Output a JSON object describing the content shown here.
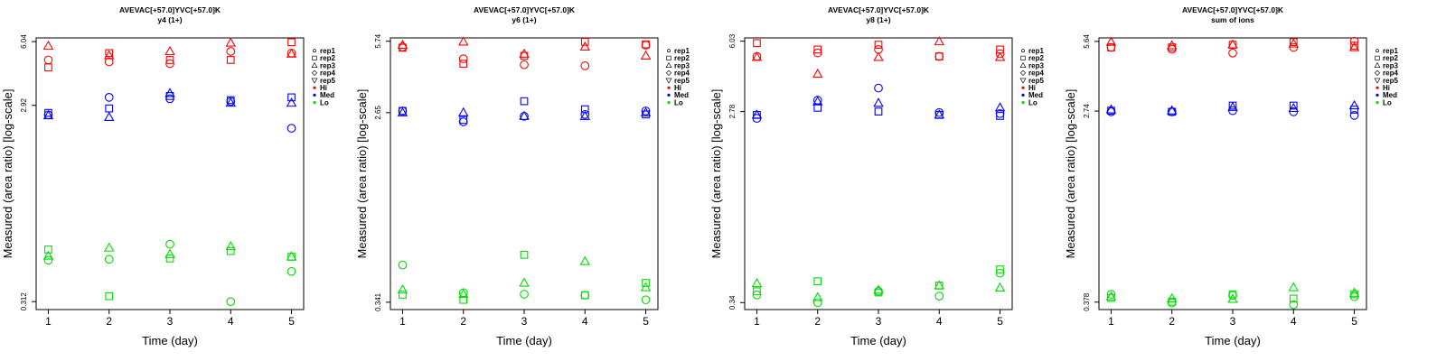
{
  "chart_data": [
    {
      "type": "scatter",
      "title": "AVEVAC[+57.0]YVC[+57.0]K",
      "subtitle": "y4 (1+)",
      "xlabel": "Time (day)",
      "ylabel": "Measured (area ratio) [log-scale]",
      "x_ticks": [
        1,
        2,
        3,
        4,
        5
      ],
      "xlim": [
        0.8,
        5.2
      ],
      "y_scale": "log",
      "y_ticks": [
        "0.312",
        "2.92",
        "6.04"
      ],
      "y_tick_values": [
        0.312,
        2.92,
        6.04
      ],
      "ylim": [
        0.285,
        6.3
      ],
      "legend": {
        "position": "right",
        "replicates": [
          "rep1",
          "rep2",
          "rep3",
          "rep4",
          "rep5"
        ],
        "levels": [
          "Hi",
          "Med",
          "Lo"
        ]
      },
      "series": [
        {
          "level": "Hi",
          "rep": "rep1",
          "x": [
            1,
            2,
            3,
            4,
            5
          ],
          "values": [
            4.9,
            4.8,
            4.7,
            5.4,
            5.3
          ]
        },
        {
          "level": "Hi",
          "rep": "rep2",
          "x": [
            1,
            2,
            3,
            4,
            5
          ],
          "values": [
            4.5,
            5.3,
            4.9,
            4.9,
            6.0
          ]
        },
        {
          "level": "Hi",
          "rep": "rep3",
          "x": [
            1,
            2,
            3,
            4,
            5
          ],
          "values": [
            5.75,
            5.15,
            5.4,
            5.95,
            5.25
          ]
        },
        {
          "level": "Med",
          "rep": "rep1",
          "x": [
            1,
            2,
            3,
            4,
            5
          ],
          "values": [
            2.62,
            3.2,
            3.15,
            3.05,
            2.25
          ]
        },
        {
          "level": "Med",
          "rep": "rep2",
          "x": [
            1,
            2,
            3,
            4,
            5
          ],
          "values": [
            2.68,
            2.82,
            3.25,
            3.1,
            3.2
          ]
        },
        {
          "level": "Med",
          "rep": "rep3",
          "x": [
            1,
            2,
            3,
            4,
            5
          ],
          "values": [
            2.6,
            2.55,
            3.35,
            3.0,
            3.0
          ]
        },
        {
          "level": "Lo",
          "rep": "rep1",
          "x": [
            1,
            2,
            3,
            4,
            5
          ],
          "values": [
            0.5,
            0.505,
            0.6,
            0.312,
            0.44
          ]
        },
        {
          "level": "Lo",
          "rep": "rep2",
          "x": [
            1,
            2,
            3,
            4,
            5
          ],
          "values": [
            0.565,
            0.332,
            0.51,
            0.555,
            0.52
          ]
        },
        {
          "level": "Lo",
          "rep": "rep3",
          "x": [
            1,
            2,
            3,
            4,
            5
          ],
          "values": [
            0.525,
            0.575,
            0.535,
            0.585,
            0.52
          ]
        }
      ]
    },
    {
      "type": "scatter",
      "title": "AVEVAC[+57.0]YVC[+57.0]K",
      "subtitle": "y6 (1+)",
      "xlabel": "Time (day)",
      "ylabel": "Measured (area ratio) [log-scale]",
      "x_ticks": [
        1,
        2,
        3,
        4,
        5
      ],
      "xlim": [
        0.8,
        5.2
      ],
      "y_scale": "log",
      "y_ticks": [
        "0.341",
        "2.65",
        "5.74"
      ],
      "y_tick_values": [
        0.341,
        2.65,
        5.74
      ],
      "ylim": [
        0.315,
        5.95
      ],
      "legend": {
        "position": "right",
        "replicates": [
          "rep1",
          "rep2",
          "rep3",
          "rep4",
          "rep5"
        ],
        "levels": [
          "Hi",
          "Med",
          "Lo"
        ]
      },
      "series": [
        {
          "level": "Hi",
          "rep": "rep1",
          "x": [
            1,
            2,
            3,
            4,
            5
          ],
          "values": [
            5.4,
            4.75,
            4.45,
            4.4,
            5.5
          ]
        },
        {
          "level": "Hi",
          "rep": "rep2",
          "x": [
            1,
            2,
            3,
            4,
            5
          ],
          "values": [
            5.35,
            4.5,
            4.9,
            5.7,
            5.55
          ]
        },
        {
          "level": "Hi",
          "rep": "rep3",
          "x": [
            1,
            2,
            3,
            4,
            5
          ],
          "values": [
            5.5,
            5.7,
            5.0,
            5.4,
            4.9
          ]
        },
        {
          "level": "Med",
          "rep": "rep1",
          "x": [
            1,
            2,
            3,
            4,
            5
          ],
          "values": [
            2.7,
            2.4,
            2.55,
            2.6,
            2.7
          ]
        },
        {
          "level": "Med",
          "rep": "rep2",
          "x": [
            1,
            2,
            3,
            4,
            5
          ],
          "values": [
            2.7,
            2.45,
            3.0,
            2.75,
            2.6
          ]
        },
        {
          "level": "Med",
          "rep": "rep3",
          "x": [
            1,
            2,
            3,
            4,
            5
          ],
          "values": [
            2.65,
            2.65,
            2.55,
            2.55,
            2.65
          ]
        },
        {
          "level": "Lo",
          "rep": "rep1",
          "x": [
            1,
            2,
            3,
            4,
            5
          ],
          "values": [
            0.51,
            0.378,
            0.372,
            0.368,
            0.35
          ]
        },
        {
          "level": "Lo",
          "rep": "rep2",
          "x": [
            1,
            2,
            3,
            4,
            5
          ],
          "values": [
            0.37,
            0.35,
            0.57,
            0.368,
            0.42
          ]
        },
        {
          "level": "Lo",
          "rep": "rep3",
          "x": [
            1,
            2,
            3,
            4,
            5
          ],
          "values": [
            0.39,
            0.372,
            0.42,
            0.53,
            0.4
          ]
        }
      ]
    },
    {
      "type": "scatter",
      "title": "AVEVAC[+57.0]YVC[+57.0]K",
      "subtitle": "y8 (1+)",
      "xlabel": "Time (day)",
      "ylabel": "Measured (area ratio) [log-scale]",
      "x_ticks": [
        1,
        2,
        3,
        4,
        5
      ],
      "xlim": [
        0.8,
        5.2
      ],
      "y_scale": "log",
      "y_ticks": [
        "0.34",
        "2.78",
        "6.03"
      ],
      "y_tick_values": [
        0.34,
        2.78,
        6.03
      ],
      "ylim": [
        0.315,
        6.25
      ],
      "legend": {
        "position": "right",
        "replicates": [
          "rep1",
          "rep2",
          "rep3",
          "rep4",
          "rep5"
        ],
        "levels": [
          "Hi",
          "Med",
          "Lo"
        ]
      },
      "series": [
        {
          "level": "Hi",
          "rep": "rep1",
          "x": [
            1,
            2,
            3,
            4,
            5
          ],
          "values": [
            5.1,
            5.3,
            5.5,
            5.1,
            5.25
          ]
        },
        {
          "level": "Hi",
          "rep": "rep2",
          "x": [
            1,
            2,
            3,
            4,
            5
          ],
          "values": [
            5.9,
            5.5,
            5.8,
            5.1,
            5.5
          ]
        },
        {
          "level": "Hi",
          "rep": "rep3",
          "x": [
            1,
            2,
            3,
            4,
            5
          ],
          "values": [
            5.05,
            4.2,
            5.05,
            6.0,
            5.05
          ]
        },
        {
          "level": "Med",
          "rep": "rep1",
          "x": [
            1,
            2,
            3,
            4,
            5
          ],
          "values": [
            2.58,
            3.15,
            3.6,
            2.75,
            2.72
          ]
        },
        {
          "level": "Med",
          "rep": "rep2",
          "x": [
            1,
            2,
            3,
            4,
            5
          ],
          "values": [
            2.68,
            2.9,
            2.78,
            2.68,
            2.65
          ]
        },
        {
          "level": "Med",
          "rep": "rep3",
          "x": [
            1,
            2,
            3,
            4,
            5
          ],
          "values": [
            2.68,
            3.1,
            3.05,
            2.68,
            2.9
          ]
        },
        {
          "level": "Lo",
          "rep": "rep1",
          "x": [
            1,
            2,
            3,
            4,
            5
          ],
          "values": [
            0.37,
            0.34,
            0.385,
            0.365,
            0.47
          ]
        },
        {
          "level": "Lo",
          "rep": "rep2",
          "x": [
            1,
            2,
            3,
            4,
            5
          ],
          "values": [
            0.385,
            0.43,
            0.38,
            0.41,
            0.49
          ]
        },
        {
          "level": "Lo",
          "rep": "rep3",
          "x": [
            1,
            2,
            3,
            4,
            5
          ],
          "values": [
            0.42,
            0.36,
            0.39,
            0.41,
            0.4
          ]
        }
      ]
    },
    {
      "type": "scatter",
      "title": "AVEVAC[+57.0]YVC[+57.0]K",
      "subtitle": "sum of ions",
      "xlabel": "Time (day)",
      "ylabel": "Measured (area ratio) [log-scale]",
      "x_ticks": [
        1,
        2,
        3,
        4,
        5
      ],
      "xlim": [
        0.8,
        5.2
      ],
      "y_scale": "log",
      "y_ticks": [
        "0.378",
        "2.74",
        "5.64"
      ],
      "y_tick_values": [
        0.378,
        2.74,
        5.64
      ],
      "ylim": [
        0.35,
        5.85
      ],
      "legend": {
        "position": "right",
        "replicates": [
          "rep1",
          "rep2",
          "rep3",
          "rep4",
          "rep5"
        ],
        "levels": [
          "Hi",
          "Med",
          "Lo"
        ]
      },
      "series": [
        {
          "level": "Hi",
          "rep": "rep1",
          "x": [
            1,
            2,
            3,
            4,
            5
          ],
          "values": [
            5.3,
            5.2,
            5.0,
            5.3,
            5.65
          ]
        },
        {
          "level": "Hi",
          "rep": "rep2",
          "x": [
            1,
            2,
            3,
            4,
            5
          ],
          "values": [
            5.3,
            5.3,
            5.45,
            5.6,
            5.4
          ]
        },
        {
          "level": "Hi",
          "rep": "rep3",
          "x": [
            1,
            2,
            3,
            4,
            5
          ],
          "values": [
            5.6,
            5.4,
            5.45,
            5.5,
            5.3
          ]
        },
        {
          "level": "Med",
          "rep": "rep1",
          "x": [
            1,
            2,
            3,
            4,
            5
          ],
          "values": [
            2.72,
            2.72,
            2.75,
            2.72,
            2.62
          ]
        },
        {
          "level": "Med",
          "rep": "rep2",
          "x": [
            1,
            2,
            3,
            4,
            5
          ],
          "values": [
            2.75,
            2.72,
            2.9,
            2.9,
            2.78
          ]
        },
        {
          "level": "Med",
          "rep": "rep3",
          "x": [
            1,
            2,
            3,
            4,
            5
          ],
          "values": [
            2.78,
            2.75,
            2.85,
            2.82,
            2.9
          ]
        },
        {
          "level": "Lo",
          "rep": "rep1",
          "x": [
            1,
            2,
            3,
            4,
            5
          ],
          "values": [
            0.41,
            0.375,
            0.405,
            0.368,
            0.4
          ]
        },
        {
          "level": "Lo",
          "rep": "rep2",
          "x": [
            1,
            2,
            3,
            4,
            5
          ],
          "values": [
            0.395,
            0.38,
            0.41,
            0.392,
            0.41
          ]
        },
        {
          "level": "Lo",
          "rep": "rep3",
          "x": [
            1,
            2,
            3,
            4,
            5
          ],
          "values": [
            0.4,
            0.392,
            0.39,
            0.44,
            0.415
          ]
        }
      ]
    }
  ],
  "colors": {
    "Hi": "#ff0000",
    "Med": "#0000ff",
    "Lo": "#00dd00",
    "axis": "#000000"
  }
}
